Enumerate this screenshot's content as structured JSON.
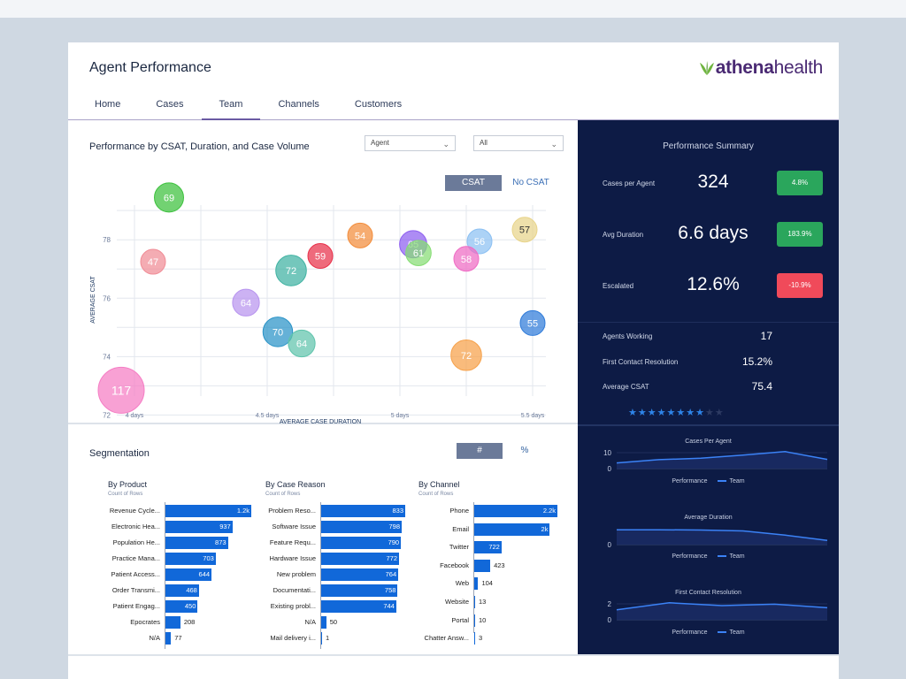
{
  "header": {
    "title": "Agent Performance",
    "logo_part1": "athena",
    "logo_part2": "health"
  },
  "tabs": [
    {
      "label": "Home",
      "active": false
    },
    {
      "label": "Cases",
      "active": false
    },
    {
      "label": "Team",
      "active": true
    },
    {
      "label": "Channels",
      "active": false
    },
    {
      "label": "Customers",
      "active": false
    }
  ],
  "performance": {
    "title": "Performance by CSAT, Duration, and Case Volume",
    "filter_agent": "Agent",
    "filter_all": "All",
    "toggle_on": "CSAT",
    "toggle_off": "No CSAT"
  },
  "chart_data": {
    "type": "scatter",
    "xlabel": "AVERAGE CASE DURATION",
    "ylabel": "AVERAGE CSAT",
    "xlim": [
      3.95,
      5.55
    ],
    "ylim": [
      71.8,
      78.4
    ],
    "x_ticks": [
      {
        "v": 4,
        "label": "4 days"
      },
      {
        "v": 4.5,
        "label": "4.5 days"
      },
      {
        "v": 5,
        "label": "5 days"
      },
      {
        "v": 5.5,
        "label": "5.5 days"
      }
    ],
    "y_ticks": [
      72,
      74,
      76,
      78
    ],
    "points": [
      {
        "x": 4.13,
        "y": 78.6,
        "size": 69,
        "color": "#3cc13c"
      },
      {
        "x": 4.07,
        "y": 76.4,
        "size": 47,
        "color": "#f08c96"
      },
      {
        "x": 4.42,
        "y": 75.0,
        "size": 64,
        "color": "#b894ef"
      },
      {
        "x": 4.59,
        "y": 76.1,
        "size": 72,
        "color": "#3fb2a2"
      },
      {
        "x": 4.7,
        "y": 76.6,
        "size": 59,
        "color": "#e8314a"
      },
      {
        "x": 4.54,
        "y": 74.0,
        "size": 70,
        "color": "#2a93c7"
      },
      {
        "x": 4.63,
        "y": 73.6,
        "size": 64,
        "color": "#5fc4ac"
      },
      {
        "x": 3.95,
        "y": 72.0,
        "size": 117,
        "color": "#f57dc4"
      },
      {
        "x": 4.85,
        "y": 77.3,
        "size": 54,
        "color": "#f28c3a"
      },
      {
        "x": 5.05,
        "y": 77.0,
        "size": 65,
        "color": "#8e5ff0"
      },
      {
        "x": 5.07,
        "y": 76.7,
        "size": 61,
        "color": "#86dd74"
      },
      {
        "x": 5.3,
        "y": 77.1,
        "size": 56,
        "color": "#8cc0f2"
      },
      {
        "x": 5.25,
        "y": 76.5,
        "size": 58,
        "color": "#ef6bc4"
      },
      {
        "x": 5.47,
        "y": 77.5,
        "size": 57,
        "color": "#e8d48a"
      },
      {
        "x": 5.5,
        "y": 74.3,
        "size": 55,
        "color": "#2f7bd9"
      },
      {
        "x": 5.25,
        "y": 73.2,
        "size": 72,
        "color": "#f6a14a"
      }
    ]
  },
  "summary": {
    "title": "Performance Summary",
    "kpis": [
      {
        "label": "Cases per Agent",
        "value": "324",
        "badge": "4.8%",
        "badge_color": "#2aa65c"
      },
      {
        "label": "Avg Duration",
        "value": "6.6 days",
        "badge": "183.9%",
        "badge_color": "#2aa65c"
      },
      {
        "label": "Escalated",
        "value": "12.6%",
        "badge": "-10.9%",
        "badge_color": "#f04a5a"
      }
    ],
    "stats": [
      {
        "label": "Agents Working",
        "value": "17"
      },
      {
        "label": "First Contact Resolution",
        "value": "15.2%"
      },
      {
        "label": "Average CSAT",
        "value": "75.4"
      }
    ],
    "stars_on": 8,
    "stars_total": 10
  },
  "mini_charts": [
    {
      "title": "Cases Per Agent",
      "ticks": [
        "10",
        "0"
      ],
      "legend_a": "Performance",
      "legend_b": "Team",
      "trend": [
        0.15,
        0.38,
        0.48,
        0.7,
        0.95,
        0.4
      ]
    },
    {
      "title": "Average Duration",
      "ticks": [
        "0"
      ],
      "legend_a": "Performance",
      "legend_b": "Team",
      "trend": [
        0.8,
        0.8,
        0.78,
        0.72,
        0.42,
        0.05
      ]
    },
    {
      "title": "First Contact Resolution",
      "ticks": [
        "2",
        "0"
      ],
      "legend_a": "Performance",
      "legend_b": "Team",
      "trend": [
        0.45,
        0.95,
        0.75,
        0.85,
        0.6
      ]
    }
  ],
  "segmentation": {
    "title": "Segmentation",
    "toggle_num": "#",
    "toggle_pct": "%",
    "columns": [
      {
        "title": "By Product",
        "subtitle": "Count of Rows",
        "max": 1200,
        "rows": [
          {
            "label": "Revenue Cycle...",
            "value": 1200,
            "display": "1.2k"
          },
          {
            "label": "Electronic Hea...",
            "value": 937,
            "display": "937"
          },
          {
            "label": "Population He...",
            "value": 873,
            "display": "873"
          },
          {
            "label": "Practice Mana...",
            "value": 703,
            "display": "703"
          },
          {
            "label": "Patient Access...",
            "value": 644,
            "display": "644"
          },
          {
            "label": "Order Transmi...",
            "value": 468,
            "display": "468"
          },
          {
            "label": "Patient Engag...",
            "value": 450,
            "display": "450"
          },
          {
            "label": "Epocrates",
            "value": 208,
            "display": "208"
          },
          {
            "label": "N/A",
            "value": 77,
            "display": "77"
          }
        ]
      },
      {
        "title": "By Case Reason",
        "subtitle": "Count of Rows",
        "max": 833,
        "rows": [
          {
            "label": "Problem Reso...",
            "value": 833,
            "display": "833"
          },
          {
            "label": "Software Issue",
            "value": 798,
            "display": "798"
          },
          {
            "label": "Feature Requ...",
            "value": 790,
            "display": "790"
          },
          {
            "label": "Hardware Issue",
            "value": 772,
            "display": "772"
          },
          {
            "label": "New problem",
            "value": 764,
            "display": "764"
          },
          {
            "label": "Documentati...",
            "value": 758,
            "display": "758"
          },
          {
            "label": "Existing probl...",
            "value": 744,
            "display": "744"
          },
          {
            "label": "N/A",
            "value": 50,
            "display": "50"
          },
          {
            "label": "Mail delivery i...",
            "value": 1,
            "display": "1"
          }
        ]
      },
      {
        "title": "By Channel",
        "subtitle": "Count of Rows",
        "max": 2200,
        "rows": [
          {
            "label": "Phone",
            "value": 2200,
            "display": "2.2k"
          },
          {
            "label": "Email",
            "value": 2000,
            "display": "2k"
          },
          {
            "label": "Twitter",
            "value": 722,
            "display": "722"
          },
          {
            "label": "Facebook",
            "value": 423,
            "display": "423"
          },
          {
            "label": "Web",
            "value": 104,
            "display": "104"
          },
          {
            "label": "Website",
            "value": 13,
            "display": "13"
          },
          {
            "label": "Portal",
            "value": 10,
            "display": "10"
          },
          {
            "label": "Chatter Answ...",
            "value": 3,
            "display": "3"
          }
        ]
      }
    ]
  }
}
